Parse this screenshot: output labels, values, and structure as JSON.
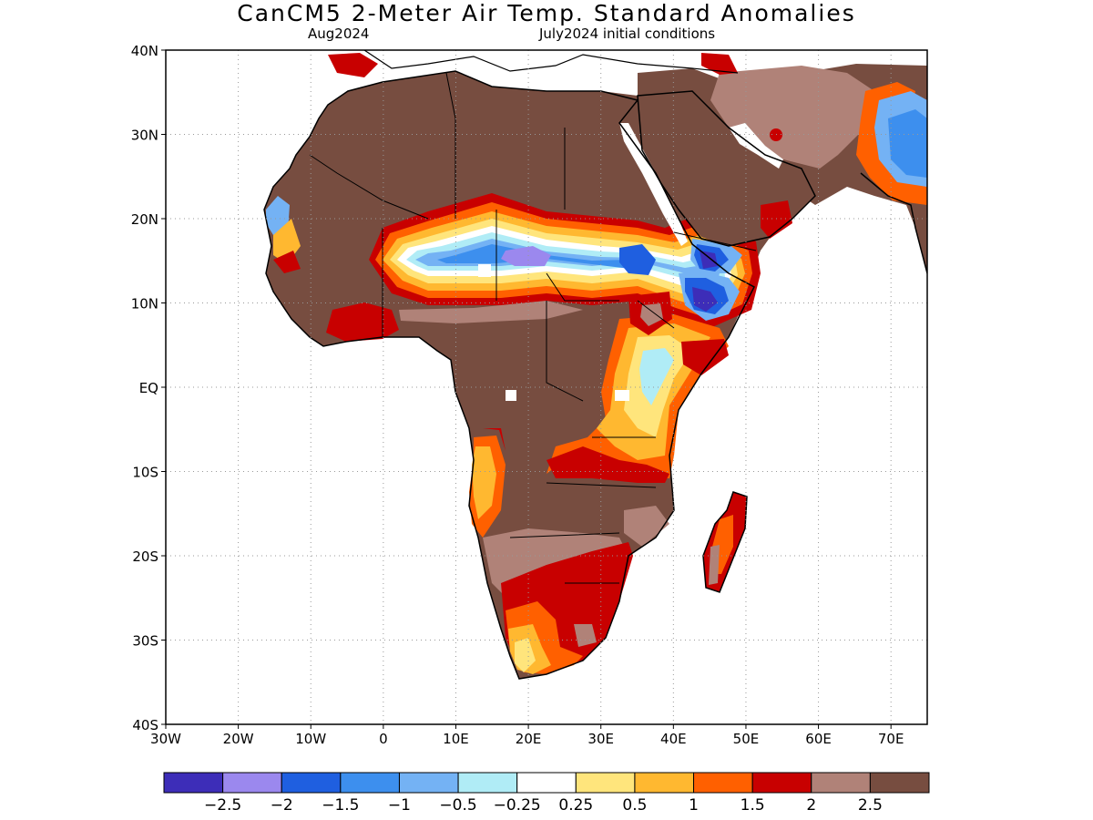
{
  "title": "CanCM5 2-Meter Air Temp. Standard Anomalies",
  "subtitle_left": "Aug2024",
  "subtitle_right": "July2024 initial conditions",
  "map": {
    "lon_range": [
      -30,
      75
    ],
    "lat_range": [
      -40,
      40
    ],
    "lon_ticks": [
      {
        "value": -30,
        "label": "30W"
      },
      {
        "value": -20,
        "label": "20W"
      },
      {
        "value": -10,
        "label": "10W"
      },
      {
        "value": 0,
        "label": "0"
      },
      {
        "value": 10,
        "label": "10E"
      },
      {
        "value": 20,
        "label": "20E"
      },
      {
        "value": 30,
        "label": "30E"
      },
      {
        "value": 40,
        "label": "40E"
      },
      {
        "value": 50,
        "label": "50E"
      },
      {
        "value": 60,
        "label": "60E"
      },
      {
        "value": 70,
        "label": "70E"
      }
    ],
    "lat_ticks": [
      {
        "value": 40,
        "label": "40N"
      },
      {
        "value": 30,
        "label": "30N"
      },
      {
        "value": 20,
        "label": "20N"
      },
      {
        "value": 10,
        "label": "10N"
      },
      {
        "value": 0,
        "label": "EQ"
      },
      {
        "value": -10,
        "label": "10S"
      },
      {
        "value": -20,
        "label": "20S"
      },
      {
        "value": -30,
        "label": "30S"
      },
      {
        "value": -40,
        "label": "40S"
      }
    ],
    "grid": "dotted"
  },
  "colors": {
    "lt_m2_5": "#3d2db8",
    "m2_5_m2": "#9b88ee",
    "m2_m1_5": "#1f5fe0",
    "m1_5_m1": "#3d8fee",
    "m1_m0_5": "#74b2f4",
    "m0_5_m0_25": "#b0ecf6",
    "neutral": "#ffffff",
    "p0_25_0_5": "#ffe57c",
    "p0_5_1": "#ffb830",
    "p1_1_5": "#ff6000",
    "p1_5_2": "#c80000",
    "p2_2_5": "#b08278",
    "gt_2_5": "#774d40"
  },
  "colorbar": {
    "colors": [
      "#3d2db8",
      "#9b88ee",
      "#1f5fe0",
      "#3d8fee",
      "#74b2f4",
      "#b0ecf6",
      "#ffffff",
      "#ffe57c",
      "#ffb830",
      "#ff6000",
      "#c80000",
      "#b08278",
      "#774d40"
    ],
    "labels": [
      "-2.5",
      "-2",
      "-1.5",
      "-1",
      "-0.5",
      "-0.25",
      "0.25",
      "0.5",
      "1",
      "1.5",
      "2",
      "2.5"
    ]
  }
}
